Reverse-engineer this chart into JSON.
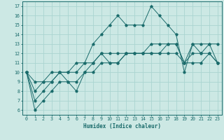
{
  "xlabel": "Humidex (Indice chaleur)",
  "background_color": "#cce8e4",
  "grid_color": "#aad4d0",
  "line_color": "#1a6b6b",
  "xlim": [
    -0.5,
    23.5
  ],
  "ylim": [
    5.5,
    17.5
  ],
  "xticks": [
    0,
    1,
    2,
    3,
    4,
    5,
    6,
    7,
    8,
    9,
    10,
    11,
    12,
    13,
    14,
    15,
    16,
    17,
    18,
    19,
    20,
    21,
    22,
    23
  ],
  "yticks": [
    6,
    7,
    8,
    9,
    10,
    11,
    12,
    13,
    14,
    15,
    16,
    17
  ],
  "lines": [
    [
      10,
      9,
      9,
      10,
      10,
      10,
      11,
      11,
      13,
      14,
      15,
      16,
      15,
      15,
      15,
      17,
      16,
      15,
      14,
      10,
      13,
      13,
      13,
      13
    ],
    [
      10,
      7,
      8,
      9,
      10,
      9,
      8,
      10,
      11,
      12,
      12,
      12,
      12,
      12,
      12,
      13,
      13,
      13,
      13,
      11,
      13,
      12,
      13,
      11
    ],
    [
      10,
      6,
      7,
      8,
      9,
      9,
      9,
      10,
      10,
      11,
      11,
      11,
      12,
      12,
      12,
      12,
      12,
      12,
      12,
      11,
      11,
      11,
      12,
      11
    ],
    [
      10,
      8,
      9,
      9,
      10,
      10,
      10,
      11,
      11,
      12,
      11,
      11,
      12,
      12,
      12,
      12,
      12,
      13,
      13,
      11,
      12,
      12,
      12,
      11
    ]
  ]
}
